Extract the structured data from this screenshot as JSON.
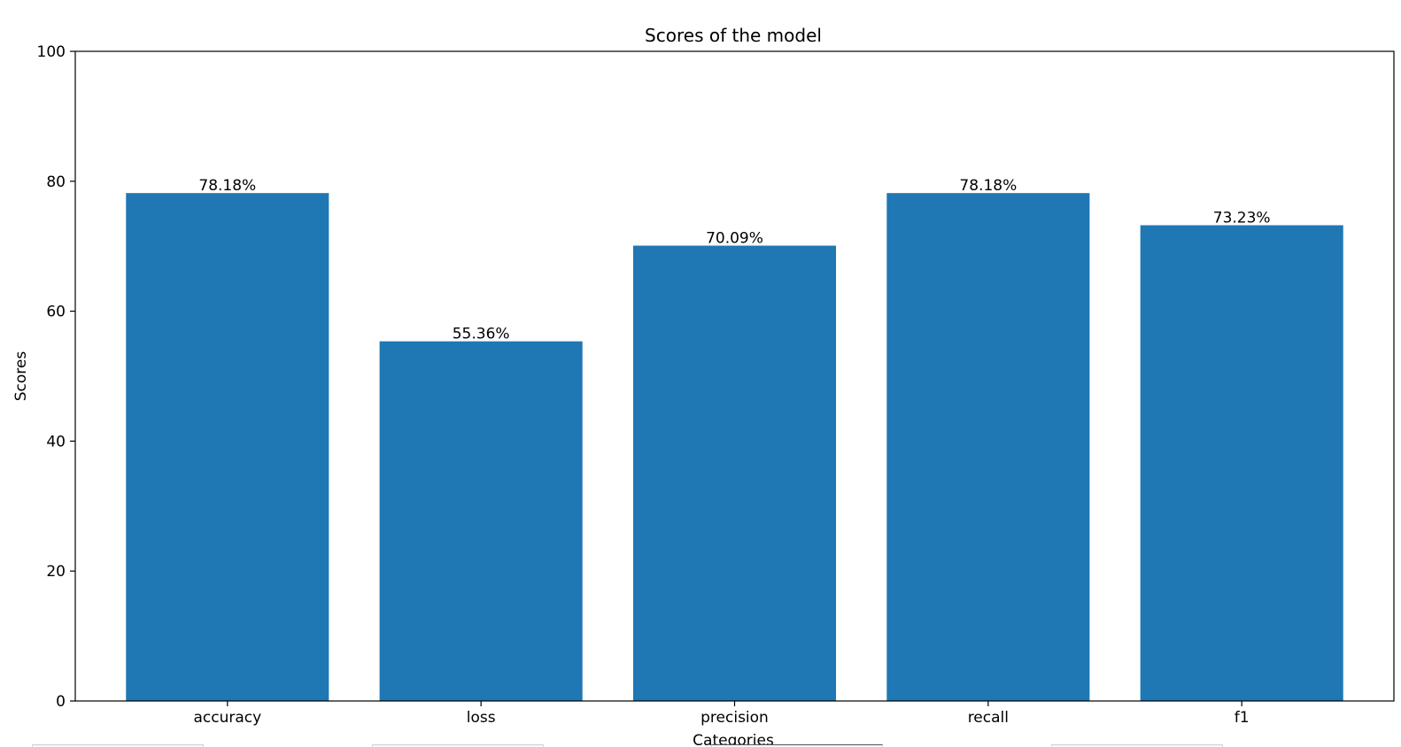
{
  "chart_data": {
    "type": "bar",
    "title": "Scores of the model",
    "xlabel": "Categories",
    "ylabel": "Scores",
    "categories": [
      "accuracy",
      "loss",
      "precision",
      "recall",
      "f1"
    ],
    "values": [
      78.18,
      55.36,
      70.09,
      78.18,
      73.23
    ],
    "value_labels": [
      "78.18%",
      "55.36%",
      "70.09%",
      "78.18%",
      "73.23%"
    ],
    "ylim": [
      0,
      100
    ],
    "yticks": [
      0,
      20,
      40,
      60,
      80,
      100
    ],
    "grid": false,
    "bar_color": "#1f77b4"
  }
}
